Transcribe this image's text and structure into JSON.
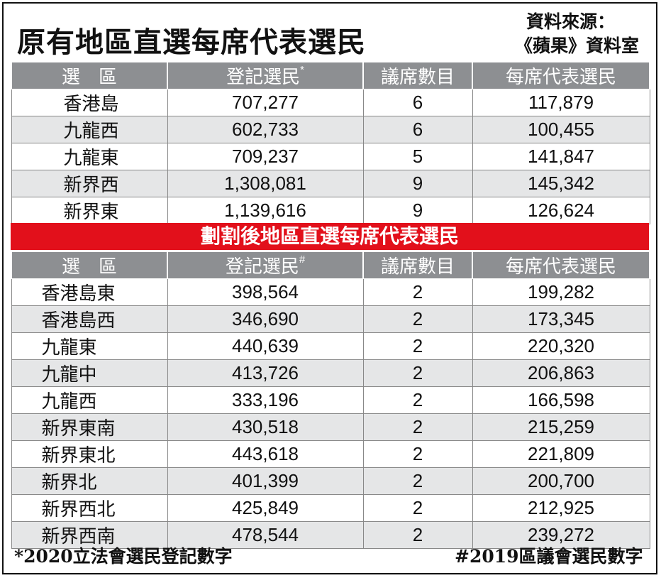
{
  "title": "原有地區直選每席代表選民",
  "source_line1": "資料來源：",
  "source_line2": "《蘋果》資料室",
  "table1": {
    "headers": [
      "選　區",
      "登記選民",
      "議席數目",
      "每席代表選民"
    ],
    "header_mark": "*",
    "rows": [
      [
        "香港島",
        "707,277",
        "6",
        "117,879"
      ],
      [
        "九龍西",
        "602,733",
        "6",
        "100,455"
      ],
      [
        "九龍東",
        "709,237",
        "5",
        "141,847"
      ],
      [
        "新界西",
        "1,308,081",
        "9",
        "145,342"
      ],
      [
        "新界東",
        "1,139,616",
        "9",
        "126,624"
      ]
    ]
  },
  "banner": "劃割後地區直選每席代表選民",
  "table2": {
    "headers": [
      "選　區",
      "登記選民",
      "議席數目",
      "每席代表選民"
    ],
    "header_mark": "#",
    "rows": [
      [
        "香港島東",
        "398,564",
        "2",
        "199,282"
      ],
      [
        "香港島西",
        "346,690",
        "2",
        "173,345"
      ],
      [
        "九龍東",
        "440,639",
        "2",
        "220,320"
      ],
      [
        "九龍中",
        "413,726",
        "2",
        "206,863"
      ],
      [
        "九龍西",
        "333,196",
        "2",
        "166,598"
      ],
      [
        "新界東南",
        "430,518",
        "2",
        "215,259"
      ],
      [
        "新界東北",
        "443,618",
        "2",
        "221,809"
      ],
      [
        "新界北",
        "401,399",
        "2",
        "200,700"
      ],
      [
        "新界西北",
        "425,849",
        "2",
        "212,925"
      ],
      [
        "新界西南",
        "478,544",
        "2",
        "239,272"
      ]
    ]
  },
  "footnote_left": "*2020立法會選民登記數字",
  "footnote_right": "#2019區議會選民數字",
  "colors": {
    "header_bg": "#8d8f92",
    "banner_bg": "#e2101b",
    "stripe_bg": "#e5e6e7"
  }
}
